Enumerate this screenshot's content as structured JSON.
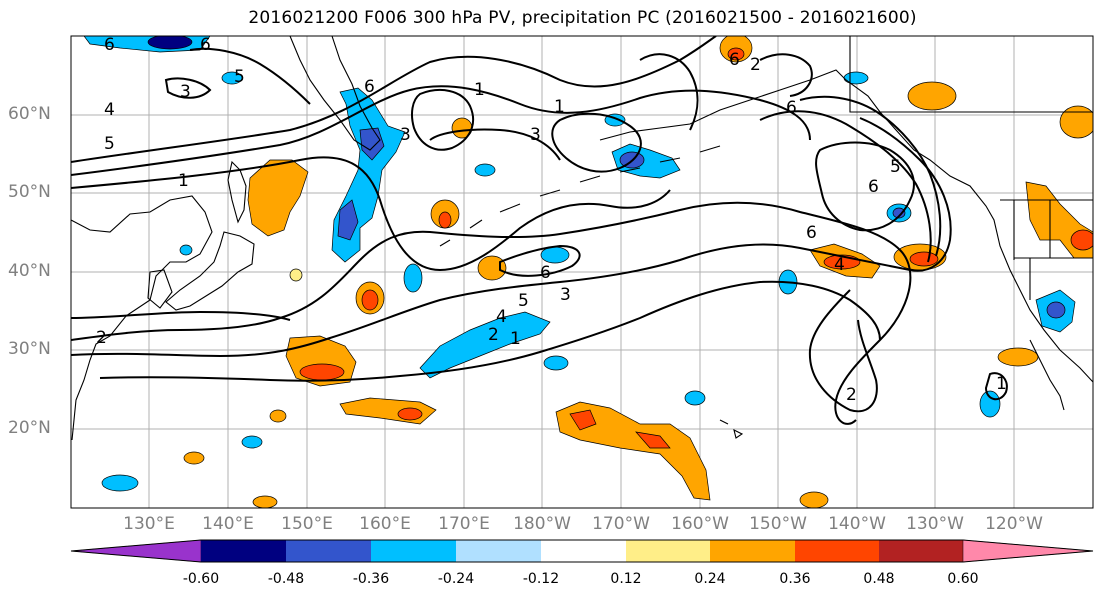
{
  "title": "2016021200 F006 300 hPa PV, precipitation PC (2016021500 - 2016021600)",
  "lat_labels": [
    "60°N",
    "50°N",
    "40°N",
    "30°N",
    "20°N"
  ],
  "lon_labels": [
    "130°E",
    "140°E",
    "150°E",
    "160°E",
    "170°E",
    "180°W",
    "170°W",
    "160°W",
    "150°W",
    "140°W",
    "130°W",
    "120°W"
  ],
  "contour_labels": [
    "6",
    "6",
    "5",
    "3",
    "4",
    "5",
    "1",
    "6",
    "1",
    "1",
    "3",
    "3",
    "6",
    "6",
    "6",
    "5",
    "2",
    "2",
    "6",
    "4",
    "5",
    "3",
    "2",
    "1",
    "2",
    "1"
  ],
  "colorbar": {
    "colors": [
      "#9933cc",
      "#000080",
      "#3355cc",
      "#00bfff",
      "#b0e0ff",
      "#ffffff",
      "#ffee88",
      "#ffa500",
      "#ff4500",
      "#b22222",
      "#ff88aa"
    ],
    "tick_labels": [
      "-0.60",
      "-0.48",
      "-0.36",
      "-0.24",
      "-0.12",
      "0.12",
      "0.24",
      "0.36",
      "0.48",
      "0.60"
    ]
  }
}
